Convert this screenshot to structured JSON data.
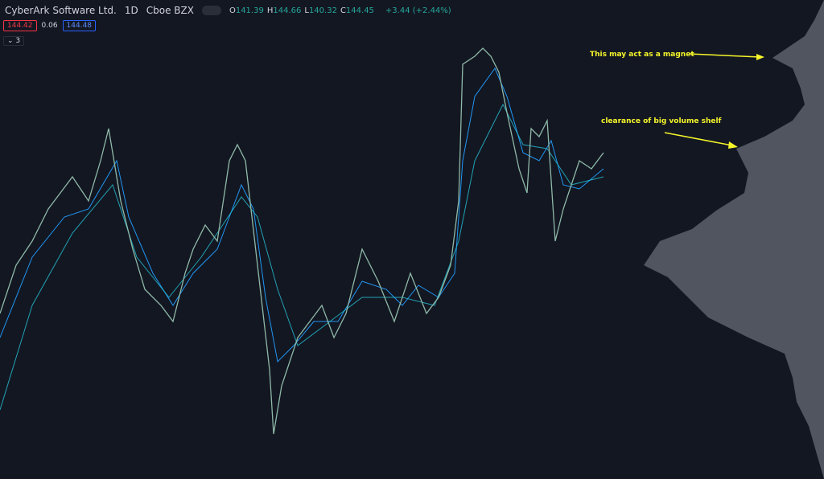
{
  "header": {
    "symbol": "CyberArk Software Ltd.",
    "interval": "1D",
    "exchange": "Cboe BZX",
    "ohlc": [
      {
        "key": "O",
        "value": "141.39"
      },
      {
        "key": "H",
        "value": "144.66"
      },
      {
        "key": "L",
        "value": "140.32"
      },
      {
        "key": "C",
        "value": "144.45"
      }
    ],
    "change": "+3.44 (+2.44%)",
    "bid": "144.42",
    "spread": "0.06",
    "ask": "144.48",
    "indicators": "3"
  },
  "annotations": [
    "This may act as a magnet",
    "clearance of big volume shelf"
  ]
}
